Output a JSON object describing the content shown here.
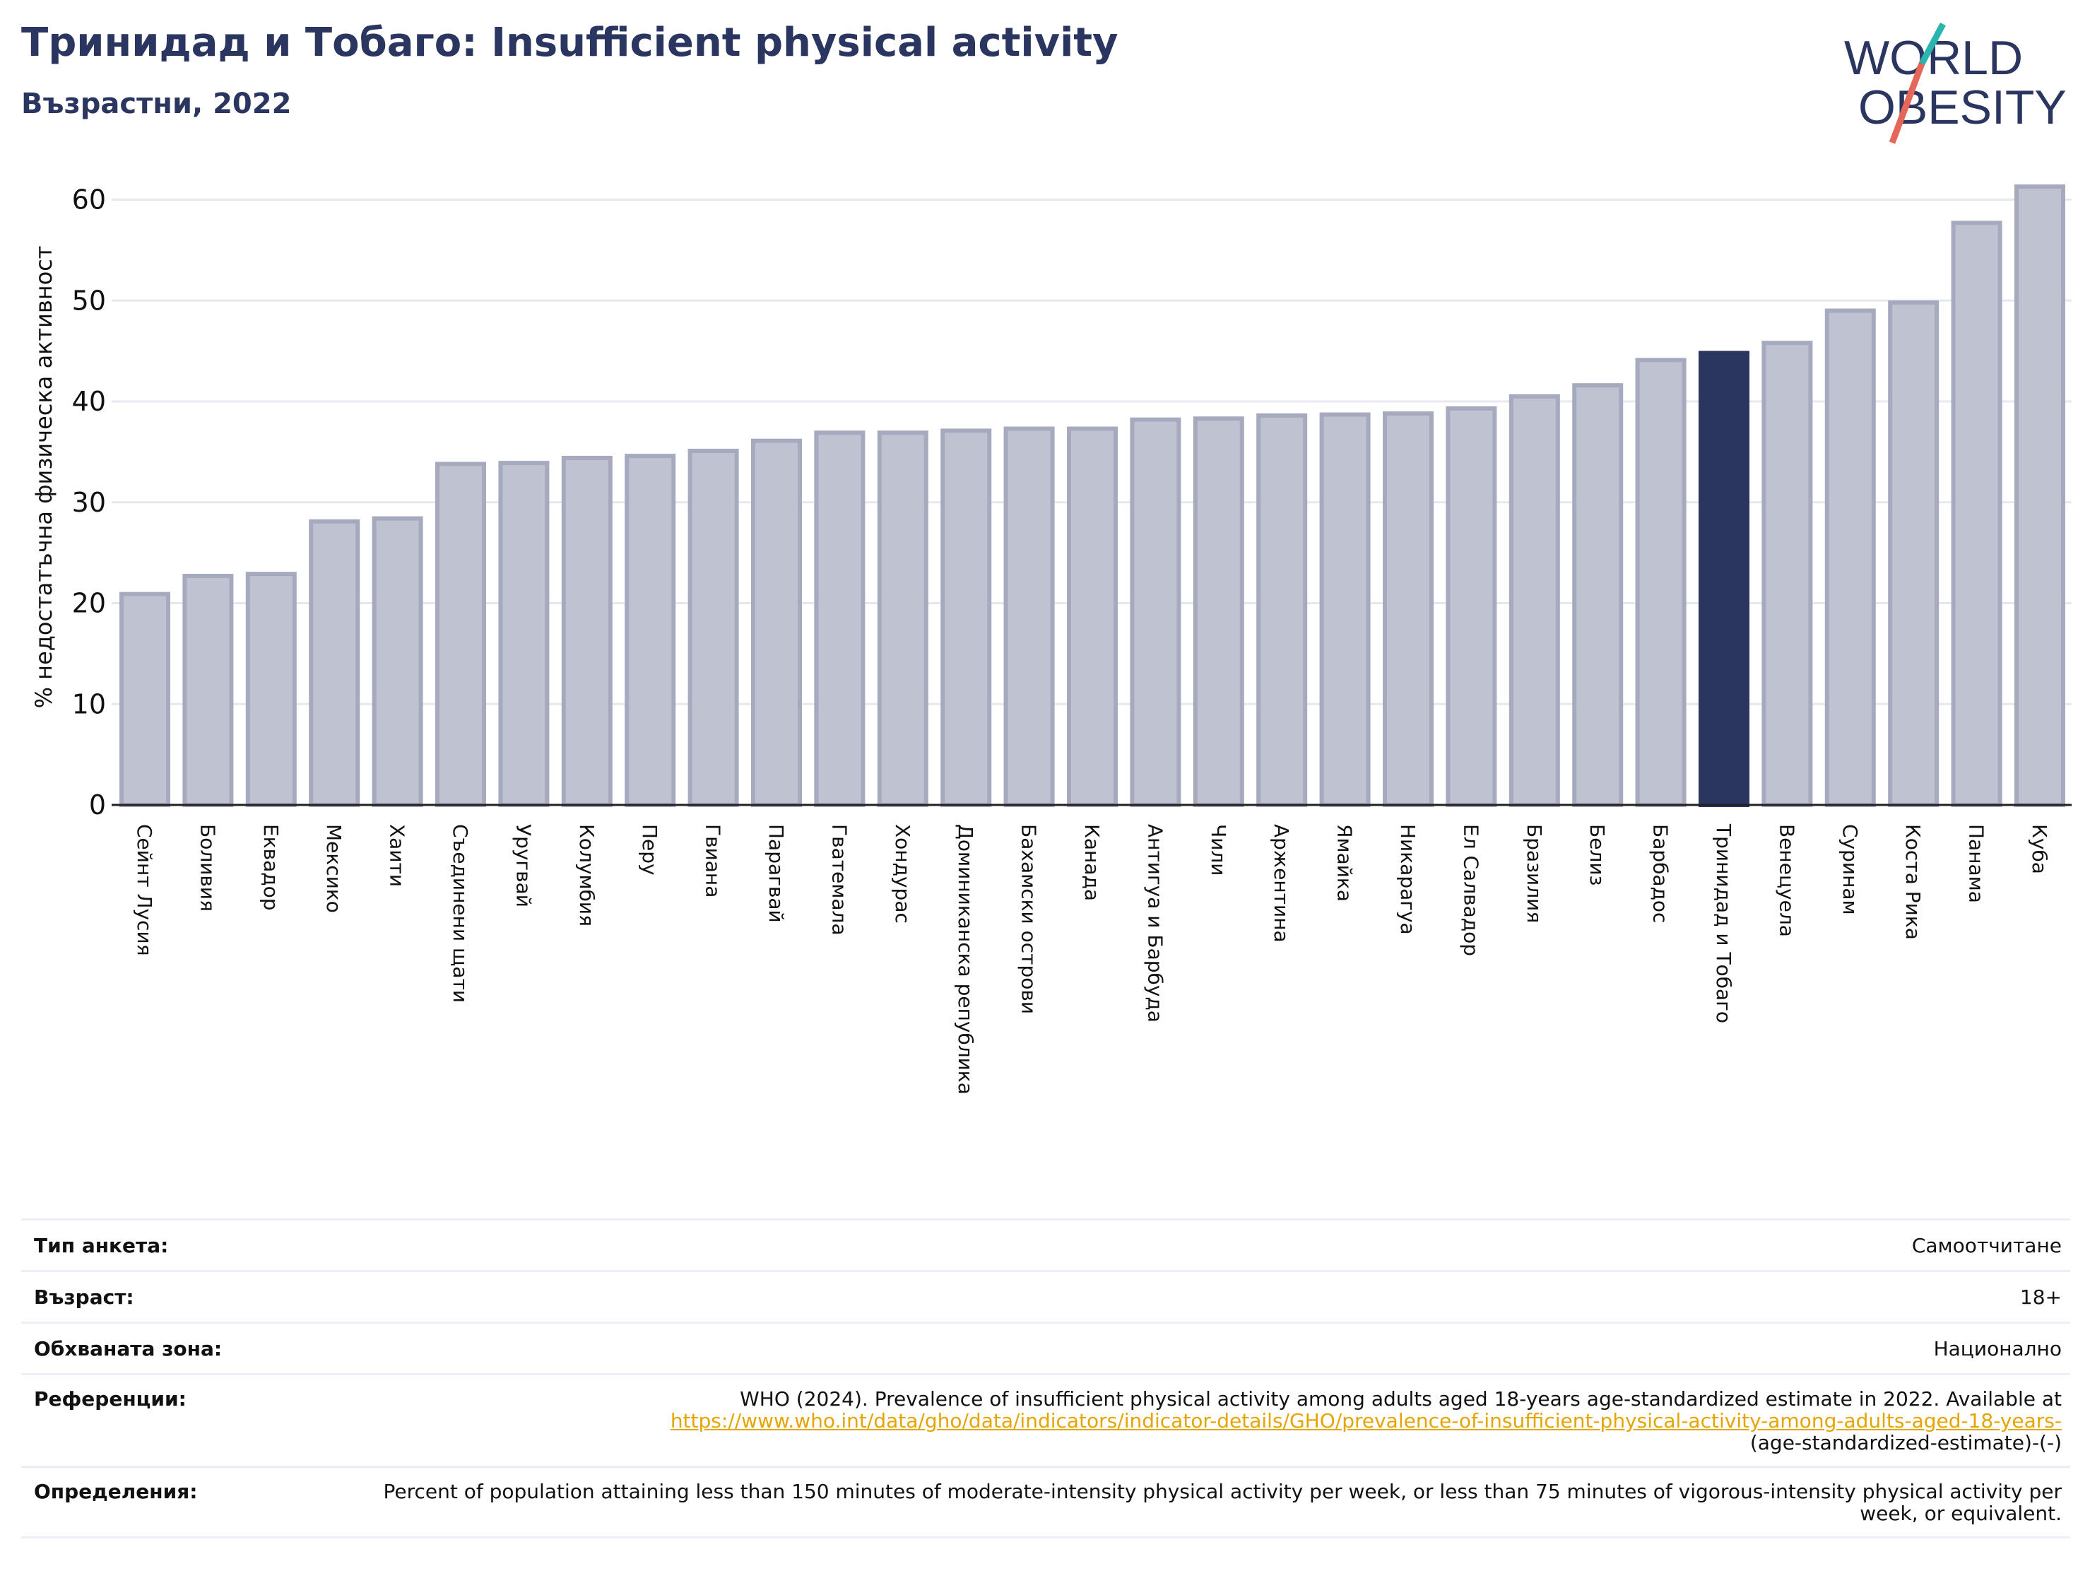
{
  "header": {
    "title": "Тринидад и Тобаго: Insufficient physical activity",
    "subtitle": "Възрастни, 2022",
    "logo_line1": "WORLD",
    "logo_line2": "OBESITY"
  },
  "chart_data": {
    "type": "bar",
    "ylabel": "% недостатъчна физическа активност",
    "ylim": [
      0,
      62
    ],
    "yticks": [
      0,
      10,
      20,
      30,
      40,
      50,
      60
    ],
    "grid": true,
    "highlight_category": "Тринидад и Тобаго",
    "colors": {
      "bar": "#bfc2d0",
      "bar_edge": "#a5aabf",
      "highlight": "#2a3560"
    },
    "categories": [
      "Сейнт Лусия",
      "Боливия",
      "Еквадор",
      "Мексико",
      "Хаити",
      "Съединени щати",
      "Уругвай",
      "Колумбия",
      "Перу",
      "Гвиана",
      "Парагвай",
      "Гватемала",
      "Хондурас",
      "Доминиканска република",
      "Бахамски острови",
      "Канада",
      "Антигуа и Барбуда",
      "Чили",
      "Аржентина",
      "Ямайка",
      "Никарагуа",
      "Ел Салвадор",
      "Бразилия",
      "Белиз",
      "Барбадос",
      "Тринидад и Тобаго",
      "Венецуела",
      "Суринам",
      "Коста Рика",
      "Панама",
      "Куба"
    ],
    "values": [
      20.9,
      22.7,
      22.9,
      28.1,
      28.4,
      33.8,
      33.9,
      34.4,
      34.6,
      35.1,
      36.1,
      36.9,
      36.9,
      37.1,
      37.3,
      37.3,
      38.2,
      38.3,
      38.6,
      38.7,
      38.8,
      39.3,
      40.5,
      41.6,
      44.1,
      44.8,
      45.8,
      49.0,
      49.8,
      57.7,
      61.3
    ]
  },
  "info": {
    "survey_type_label": "Тип анкета:",
    "survey_type_value": "Самоотчитане",
    "age_label": "Възраст:",
    "age_value": "18+",
    "area_label": "Обхваната зона:",
    "area_value": "Национално",
    "references_label": "Референции:",
    "references_text": "WHO (2024). Prevalence of insufficient physical activity among adults aged 18-years age-standardized estimate in 2022. Available at",
    "references_link": "https://www.who.int/data/gho/data/indicators/indicator-details/GHO/prevalence-of-insufficient-physical-activity-among-adults-aged-18-years-",
    "references_tail": "(age-standardized-estimate)-(-)",
    "definitions_label": "Определения:",
    "definitions_text": "Percent of population attaining less than 150 minutes of moderate-intensity physical activity per week, or less than 75 minutes of vigorous-intensity physical activity per week, or equivalent."
  }
}
